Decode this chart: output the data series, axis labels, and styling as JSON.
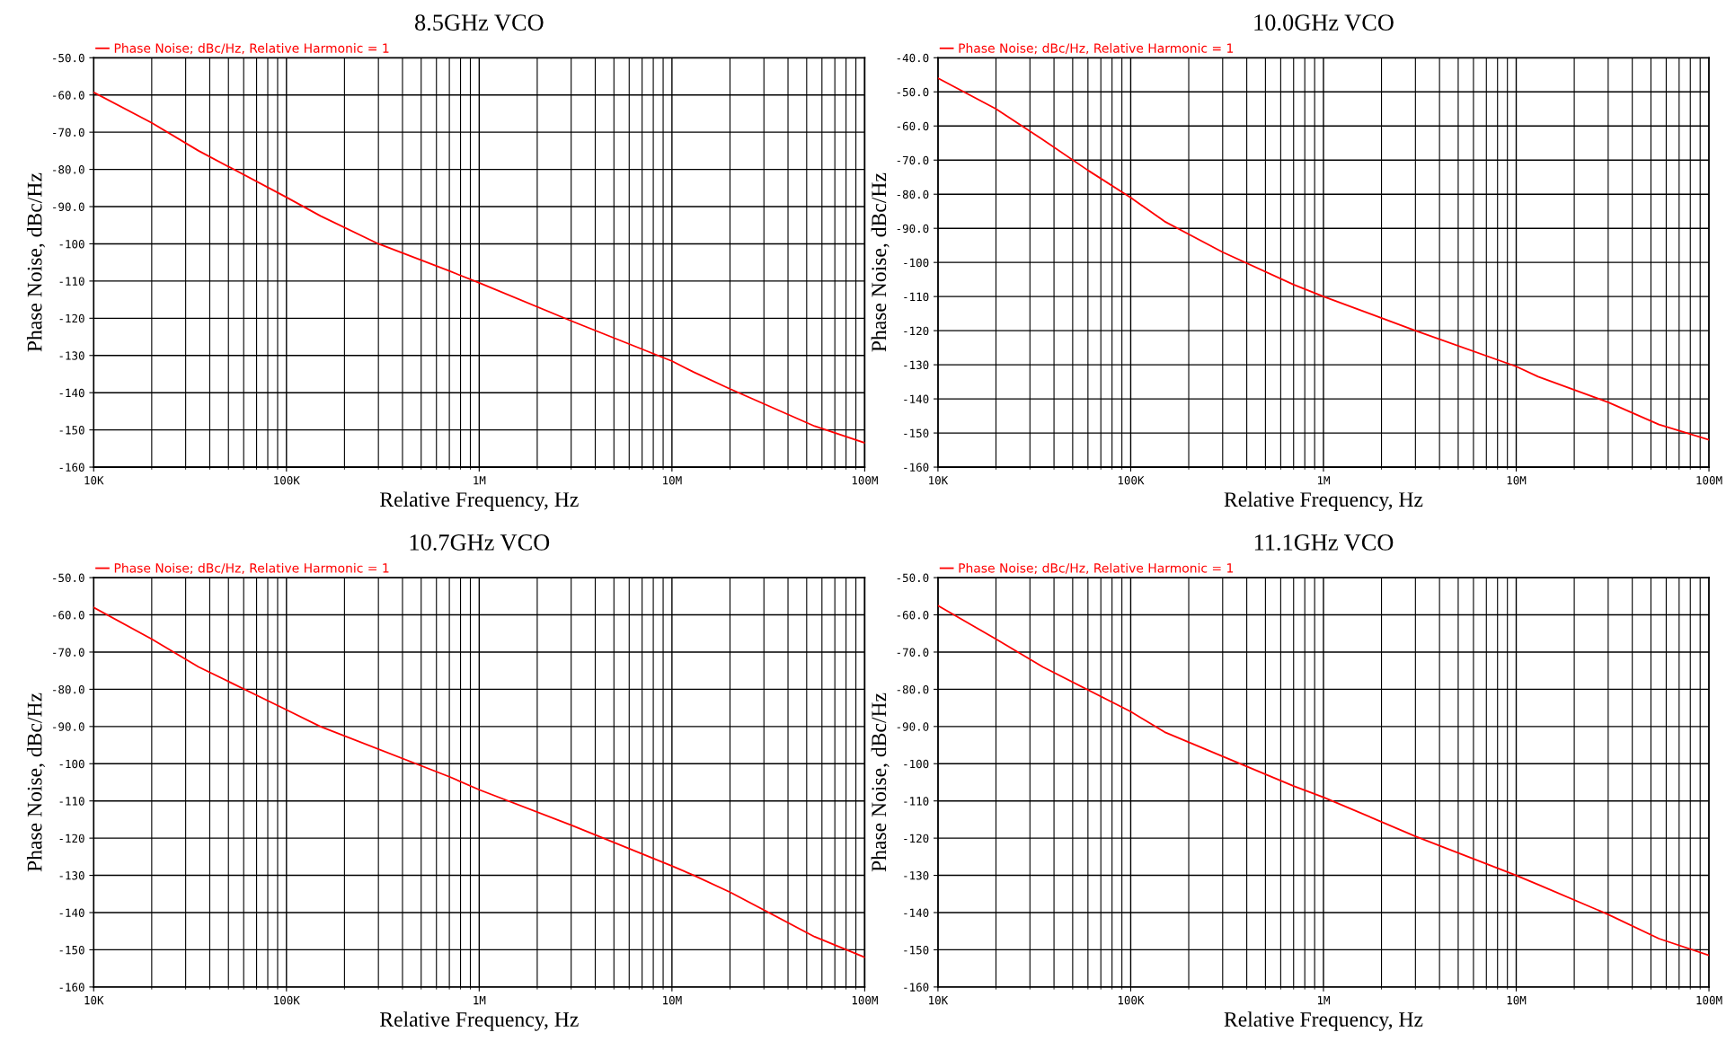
{
  "chart_data": [
    {
      "type": "line",
      "title": "8.5GHz VCO",
      "xlabel": "Relative Frequency, Hz",
      "ylabel": "Phase Noise, dBc/Hz",
      "log": "x",
      "grid": true,
      "legend": "top left",
      "marker": "none",
      "line_style": "solid",
      "xlim": [
        10000,
        100000000
      ],
      "xticks": [
        {
          "value": 10000,
          "label": "10K"
        },
        {
          "value": 100000,
          "label": "100K"
        },
        {
          "value": 1000000,
          "label": "1M"
        },
        {
          "value": 10000000,
          "label": "10M"
        },
        {
          "value": 100000000,
          "label": "100M"
        }
      ],
      "ylim": [
        -160,
        -50
      ],
      "yticks": [
        {
          "value": -50,
          "label": "-50.0"
        },
        {
          "value": -60,
          "label": "-60.0"
        },
        {
          "value": -70,
          "label": "-70.0"
        },
        {
          "value": -80,
          "label": "-80.0"
        },
        {
          "value": -90,
          "label": "-90.0"
        },
        -100,
        -110,
        -120,
        -130,
        -140,
        -150,
        -160
      ],
      "series": [
        {
          "name": "Phase Noise; dBc/Hz, Relative Harmonic = 1",
          "color": "#ff0000",
          "x": [
            10000,
            20000,
            35000,
            100000,
            150000,
            300000,
            700000,
            1000000,
            3000000,
            10000000,
            13000000,
            20000000,
            55000000,
            100000000
          ],
          "values": [
            -59.3,
            -67.5,
            -75,
            -87.5,
            -92.5,
            -100,
            -107.3,
            -110.5,
            -120.7,
            -131.5,
            -134.5,
            -139,
            -149,
            -153.5
          ]
        }
      ]
    },
    {
      "type": "line",
      "title": "10.0GHz VCO",
      "xlabel": "Relative Frequency, Hz",
      "ylabel": "Phase Noise, dBc/Hz",
      "log": "x",
      "grid": true,
      "legend": "top left",
      "marker": "none",
      "line_style": "solid",
      "xlim": [
        10000,
        100000000
      ],
      "xticks": [
        {
          "value": 10000,
          "label": "10K"
        },
        {
          "value": 100000,
          "label": "100K"
        },
        {
          "value": 1000000,
          "label": "1M"
        },
        {
          "value": 10000000,
          "label": "10M"
        },
        {
          "value": 100000000,
          "label": "100M"
        }
      ],
      "ylim": [
        -160,
        -40
      ],
      "yticks": [
        {
          "value": -40,
          "label": "-40.0"
        },
        {
          "value": -50,
          "label": "-50.0"
        },
        {
          "value": -60,
          "label": "-60.0"
        },
        {
          "value": -70,
          "label": "-70.0"
        },
        {
          "value": -80,
          "label": "-80.0"
        },
        {
          "value": -90,
          "label": "-90.0"
        },
        -100,
        -110,
        -120,
        -130,
        -140,
        -150,
        -160
      ],
      "series": [
        {
          "name": "Phase Noise; dBc/Hz, Relative Harmonic = 1",
          "color": "#ff0000",
          "x": [
            10000,
            20000,
            35000,
            60000,
            100000,
            150000,
            300000,
            700000,
            1000000,
            3000000,
            10000000,
            13000000,
            30000000,
            55000000,
            100000000
          ],
          "values": [
            -46,
            -55,
            -64,
            -73,
            -81,
            -88,
            -97,
            -106.5,
            -110,
            -120,
            -130.5,
            -133.5,
            -141,
            -147.5,
            -152
          ]
        }
      ]
    },
    {
      "type": "line",
      "title": "10.7GHz VCO",
      "xlabel": "Relative Frequency, Hz",
      "ylabel": "Phase Noise, dBc/Hz",
      "log": "x",
      "grid": true,
      "legend": "top left",
      "marker": "none",
      "line_style": "solid",
      "xlim": [
        10000,
        100000000
      ],
      "xticks": [
        {
          "value": 10000,
          "label": "10K"
        },
        {
          "value": 100000,
          "label": "100K"
        },
        {
          "value": 1000000,
          "label": "1M"
        },
        {
          "value": 10000000,
          "label": "10M"
        },
        {
          "value": 100000000,
          "label": "100M"
        }
      ],
      "ylim": [
        -160,
        -50
      ],
      "yticks": [
        {
          "value": -50,
          "label": "-50.0"
        },
        {
          "value": -60,
          "label": "-60.0"
        },
        {
          "value": -70,
          "label": "-70.0"
        },
        {
          "value": -80,
          "label": "-80.0"
        },
        {
          "value": -90,
          "label": "-90.0"
        },
        -100,
        -110,
        -120,
        -130,
        -140,
        -150,
        -160
      ],
      "series": [
        {
          "name": "Phase Noise; dBc/Hz, Relative Harmonic = 1",
          "color": "#ff0000",
          "x": [
            10000,
            20000,
            35000,
            100000,
            150000,
            700000,
            1000000,
            3000000,
            10000000,
            13000000,
            20000000,
            55000000,
            100000000
          ],
          "values": [
            -58,
            -66.5,
            -74,
            -85.5,
            -90,
            -103.5,
            -107,
            -116.5,
            -127.5,
            -130,
            -134.5,
            -146.5,
            -152
          ]
        }
      ]
    },
    {
      "type": "line",
      "title": "11.1GHz VCO",
      "xlabel": "Relative Frequency, Hz",
      "ylabel": "Phase Noise, dBc/Hz",
      "log": "x",
      "grid": true,
      "legend": "top left",
      "marker": "none",
      "line_style": "solid",
      "xlim": [
        10000,
        100000000
      ],
      "xticks": [
        {
          "value": 10000,
          "label": "10K"
        },
        {
          "value": 100000,
          "label": "100K"
        },
        {
          "value": 1000000,
          "label": "1M"
        },
        {
          "value": 10000000,
          "label": "10M"
        },
        {
          "value": 100000000,
          "label": "100M"
        }
      ],
      "ylim": [
        -160,
        -50
      ],
      "yticks": [
        {
          "value": -50,
          "label": "-50.0"
        },
        {
          "value": -60,
          "label": "-60.0"
        },
        {
          "value": -70,
          "label": "-70.0"
        },
        {
          "value": -80,
          "label": "-80.0"
        },
        {
          "value": -90,
          "label": "-90.0"
        },
        -100,
        -110,
        -120,
        -130,
        -140,
        -150,
        -160
      ],
      "series": [
        {
          "name": "Phase Noise; dBc/Hz, Relative Harmonic = 1",
          "color": "#ff0000",
          "x": [
            10000,
            20000,
            35000,
            100000,
            150000,
            700000,
            1000000,
            3000000,
            10000000,
            13000000,
            30000000,
            55000000,
            100000000
          ],
          "values": [
            -57.5,
            -66.5,
            -74,
            -86,
            -91.5,
            -106,
            -109,
            -119.5,
            -130,
            -132.5,
            -140.5,
            -147,
            -151.5
          ]
        }
      ]
    }
  ]
}
